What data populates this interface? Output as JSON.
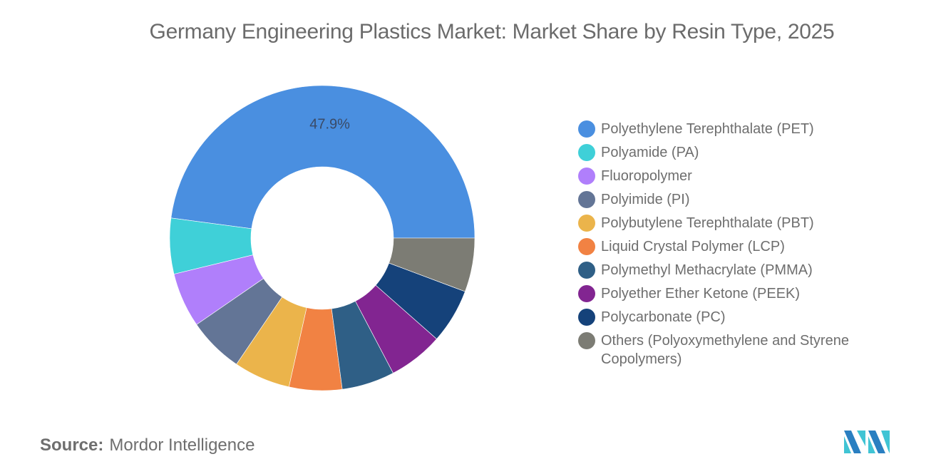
{
  "title": "Germany Engineering Plastics Market: Market Share by Resin Type, 2025",
  "source": {
    "key": "Source:",
    "value": "Mordor Intelligence"
  },
  "logo": {
    "icon": "mordor-intelligence-logo-icon",
    "colors": [
      "#2a7fc1",
      "#40c4d4"
    ]
  },
  "chart_data": {
    "type": "pie",
    "variant": "donut",
    "title": "Germany Engineering Plastics Market: Market Share by Resin Type, 2025",
    "start_angle_deg": 0,
    "direction": "counterclockwise-from-3-oclock",
    "legend_position": "right",
    "categories": [
      "Polyethylene Terephthalate (PET)",
      "Polyamide (PA)",
      "Fluoropolymer",
      "Polyimide (PI)",
      "Polybutylene Terephthalate (PBT)",
      "Liquid Crystal Polymer (LCP)",
      "Polymethyl Methacrylate (PMMA)",
      "Polyether Ether Ketone (PEEK)",
      "Polycarbonate (PC)",
      "Others (Polyoxymethylene and Styrene Copolymers)"
    ],
    "values": [
      47.9,
      5.9,
      5.8,
      5.9,
      6.0,
      5.6,
      5.6,
      5.8,
      5.8,
      5.7
    ],
    "colors": [
      "#4a8fe0",
      "#3fd0d8",
      "#b07ffb",
      "#637596",
      "#ebb44b",
      "#f18243",
      "#2f5f86",
      "#822591",
      "#15427a",
      "#7c7c74"
    ],
    "data_labels": [
      {
        "index": 0,
        "text": "47.9%"
      }
    ],
    "unit": "%"
  },
  "legend": {
    "items": [
      {
        "label": "Polyethylene Terephthalate (PET)",
        "color": "#4a8fe0"
      },
      {
        "label": "Polyamide (PA)",
        "color": "#3fd0d8"
      },
      {
        "label": "Fluoropolymer",
        "color": "#b07ffb"
      },
      {
        "label": "Polyimide (PI)",
        "color": "#637596"
      },
      {
        "label": "Polybutylene Terephthalate (PBT)",
        "color": "#ebb44b"
      },
      {
        "label": "Liquid Crystal Polymer (LCP)",
        "color": "#f18243"
      },
      {
        "label": "Polymethyl Methacrylate (PMMA)",
        "color": "#2f5f86"
      },
      {
        "label": "Polyether Ether Ketone (PEEK)",
        "color": "#822591"
      },
      {
        "label": "Polycarbonate (PC)",
        "color": "#15427a"
      },
      {
        "label": "Others (Polyoxymethylene and Styrene Copolymers)",
        "color": "#7c7c74"
      }
    ]
  }
}
